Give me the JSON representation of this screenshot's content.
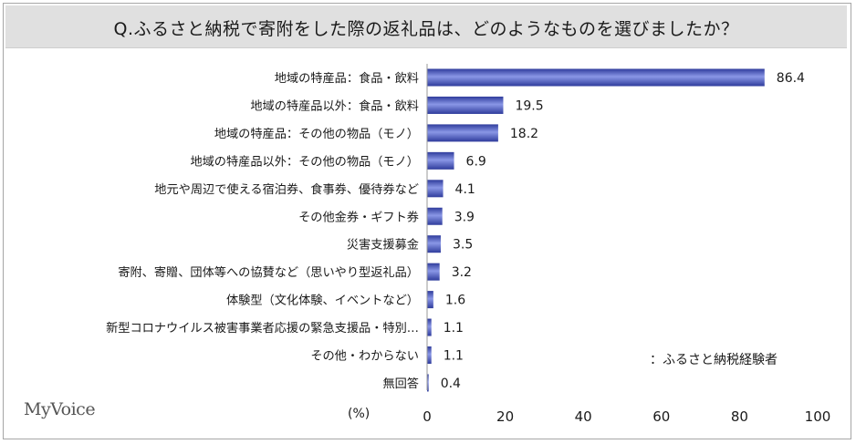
{
  "title": "Q.ふるさと納税で寄附をした際の返礼品は、どのようなものを選びましたか？",
  "brand": "MyVoice",
  "note": "：ふるさと納税経験者",
  "unit_label": "(%)",
  "colors": {
    "bar_start": "#2f3c9c",
    "bar_end": "#8a97e6",
    "title_bg": "#e0e0e0"
  },
  "chart_data": {
    "type": "bar",
    "orientation": "horizontal",
    "categories": [
      "地域の特産品：食品・飲料",
      "地域の特産品以外：食品・飲料",
      "地域の特産品：その他の物品（モノ）",
      "地域の特産品以外：その他の物品（モノ）",
      "地元や周辺で使える宿泊券、食事券、優待券など",
      "その他金券・ギフト券",
      "災害支援募金",
      "寄附、寄贈、団体等への協賛など（思いやり型返礼品）",
      "体験型（文化体験、イベントなど）",
      "新型コロナウイルス被害事業者応援の緊急支援品・特別…",
      "その他・わからない",
      "無回答"
    ],
    "values": [
      86.4,
      19.5,
      18.2,
      6.9,
      4.1,
      3.9,
      3.5,
      3.2,
      1.6,
      1.1,
      1.1,
      0.4
    ],
    "value_labels": [
      "86.4",
      "19.5",
      "18.2",
      "6.9",
      "4.1",
      "3.9",
      "3.5",
      "3.2",
      "1.6",
      "1.1",
      "1.1",
      "0.4"
    ],
    "xlim": [
      0,
      100
    ],
    "xticks": [
      "0",
      "20",
      "40",
      "60",
      "80",
      "100"
    ],
    "xlabel": "(%)",
    "grid": false,
    "legend": "none"
  }
}
